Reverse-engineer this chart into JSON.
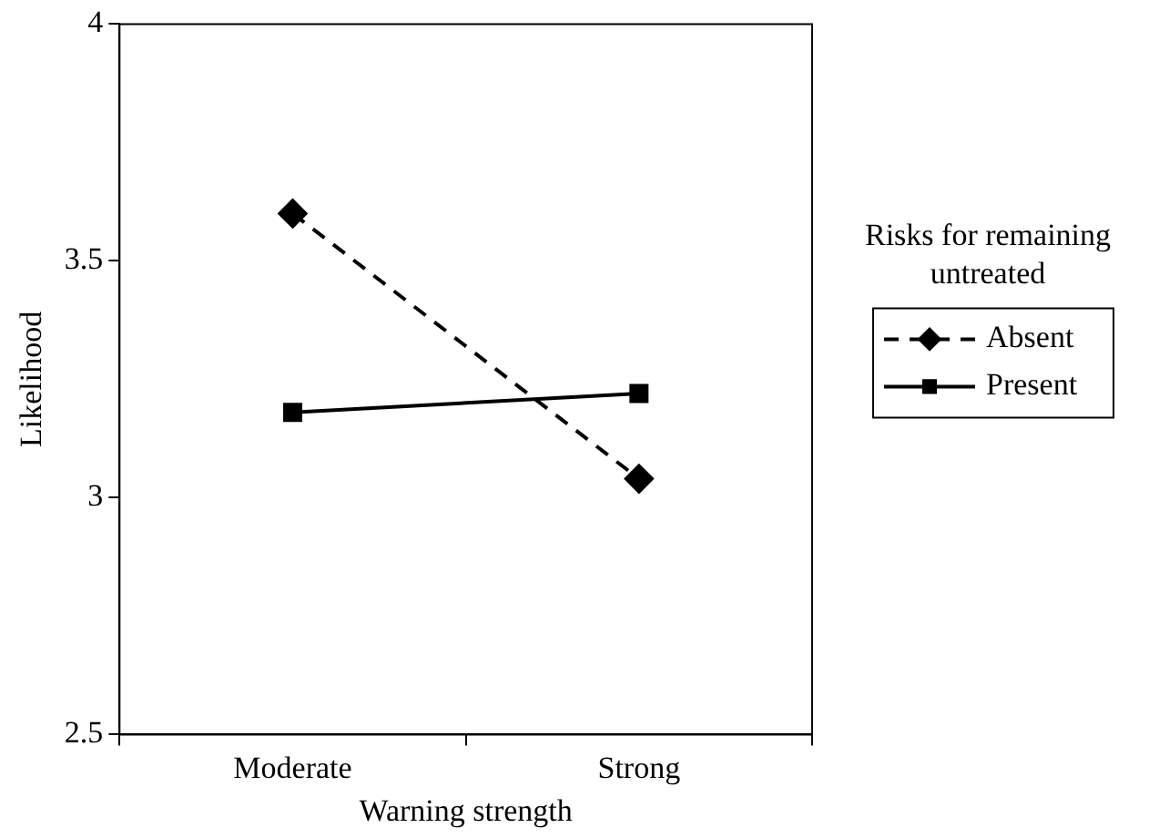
{
  "chart_data": {
    "type": "line",
    "xlabel": "Warning strength",
    "ylabel": "Likelihood",
    "legend_title": "Risks for remaining untreated",
    "categories": [
      "Moderate",
      "Strong"
    ],
    "series": [
      {
        "name": "Absent",
        "color": "#000000",
        "values": [
          3.6,
          3.04
        ],
        "marker": "diamond",
        "line_style": "dashed"
      },
      {
        "name": "Present",
        "color": "#000000",
        "values": [
          3.18,
          3.22
        ],
        "marker": "square",
        "line_style": "solid"
      }
    ],
    "ylim": [
      2.5,
      4
    ],
    "yticks": [
      2.5,
      {
        "value": 3,
        "label": "3"
      },
      3.5,
      {
        "value": 4,
        "label": "4"
      }
    ],
    "grid": false,
    "legend": "right"
  }
}
